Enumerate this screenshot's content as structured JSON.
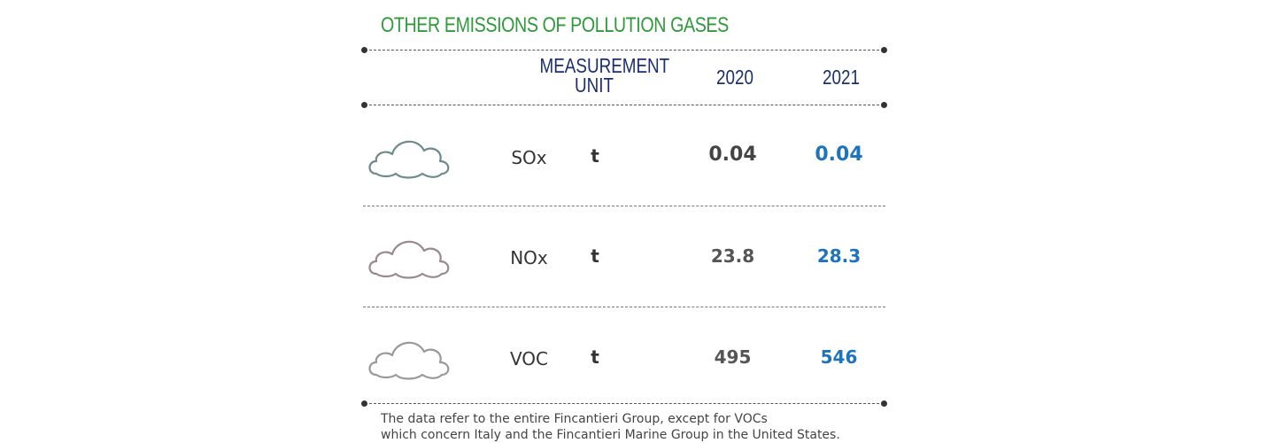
{
  "title": "OTHER EMISSIONS OF POLLUTION GASES",
  "header": {
    "unit_line1": "MEASUREMENT",
    "unit_line2": "UNIT",
    "year1": "2020",
    "year2": "2021"
  },
  "rows": [
    {
      "gas": "SOx",
      "unit": "t",
      "v2020": "0.04",
      "v2021": "0.04",
      "icon": "cloud-icon",
      "cloud_color": "#6e8a8a"
    },
    {
      "gas": "NOx",
      "unit": "t",
      "v2020": "23.8",
      "v2021": "28.3",
      "icon": "cloud-icon",
      "cloud_color": "#9a8890"
    },
    {
      "gas": "VOC",
      "unit": "t",
      "v2020": "495",
      "v2021": "546",
      "icon": "cloud-icon",
      "cloud_color": "#999999"
    }
  ],
  "note": {
    "line1": "The data refer to the entire Fincantieri Group, except for VOCs",
    "line2": "which concern Italy and the Fincantieri Marine Group in the United States."
  },
  "colors": {
    "title": "#2f9a3a",
    "header": "#1b2e6e",
    "value_2021": "#1e73be"
  }
}
